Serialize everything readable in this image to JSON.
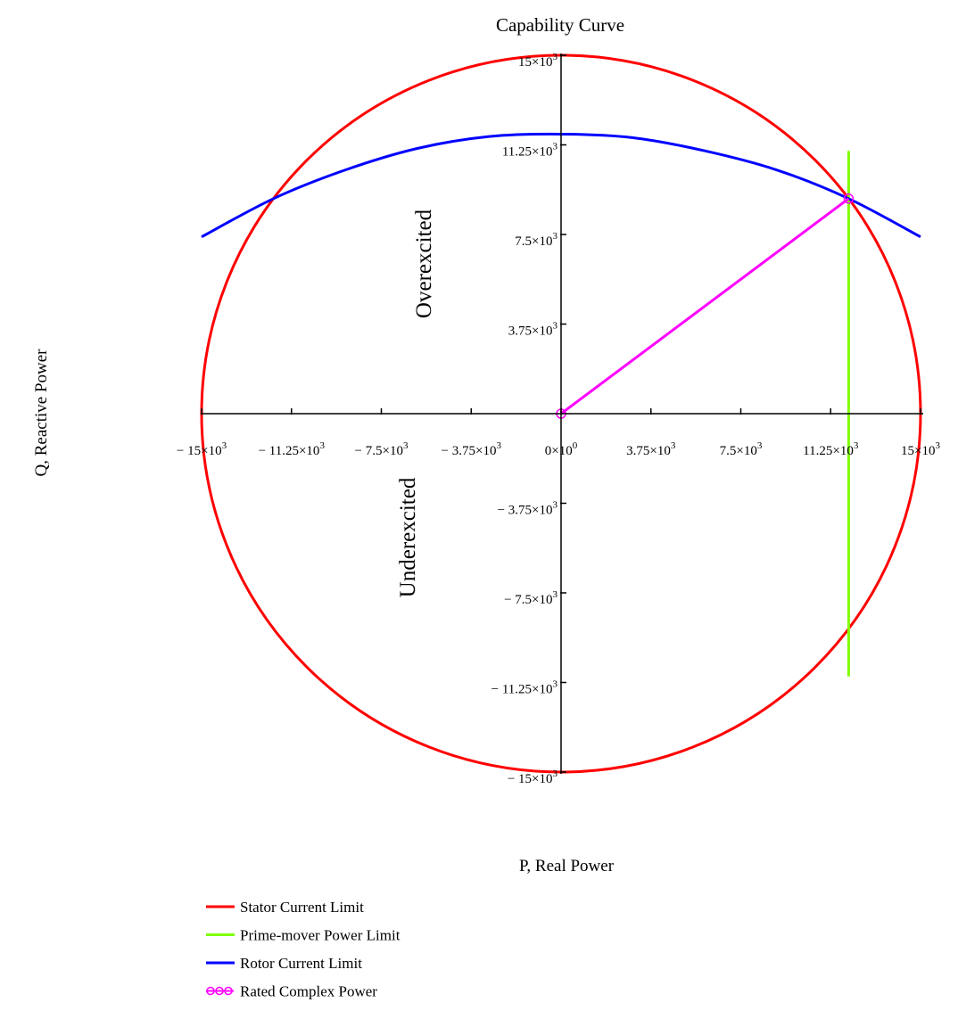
{
  "chart_data": {
    "type": "line",
    "title": "Capability Curve",
    "xlabel": "P, Real Power",
    "ylabel": "Q, Reactive Power",
    "xlim": [
      -15000,
      15000
    ],
    "ylim": [
      -15000,
      15000
    ],
    "x_ticks": [
      {
        "value": -15000,
        "label": "− 15×10³"
      },
      {
        "value": -11250,
        "label": "− 11.25×10³"
      },
      {
        "value": -7500,
        "label": "− 7.5×10³"
      },
      {
        "value": -3750,
        "label": "− 3.75×10³"
      },
      {
        "value": 0,
        "label": "0×10⁰"
      },
      {
        "value": 3750,
        "label": "3.75×10³"
      },
      {
        "value": 7500,
        "label": "7.5×10³"
      },
      {
        "value": 11250,
        "label": "11.25×10³"
      },
      {
        "value": 15000,
        "label": "15×10³"
      }
    ],
    "y_ticks": [
      {
        "value": 15000,
        "label": "15×10³"
      },
      {
        "value": 11250,
        "label": "11.25×10³"
      },
      {
        "value": 7500,
        "label": "7.5×10³"
      },
      {
        "value": 3750,
        "label": "3.75×10³"
      },
      {
        "value": -3750,
        "label": "− 3.75×10³"
      },
      {
        "value": -7500,
        "label": "− 7.5×10³"
      },
      {
        "value": -11250,
        "label": "− 11.25×10³"
      },
      {
        "value": -15000,
        "label": "− 15×10³"
      }
    ],
    "region_labels": {
      "upper": "Overexcited",
      "lower": "Underexcited"
    },
    "series": [
      {
        "name": "Stator Current Limit",
        "color": "#ff0000",
        "kind": "circle",
        "center": [
          0,
          0
        ],
        "radius": 15000
      },
      {
        "name": "Prime-mover Power Limit",
        "color": "#80ff00",
        "kind": "vertical",
        "x": 12000,
        "y_range": [
          -11000,
          11000
        ]
      },
      {
        "name": "Rotor Current Limit",
        "color": "#0000ff",
        "kind": "arc",
        "x_range": [
          -15000,
          15000
        ],
        "points": [
          [
            -15000,
            7400
          ],
          [
            -12000,
            9000
          ],
          [
            -9000,
            10200
          ],
          [
            -6000,
            11100
          ],
          [
            -3000,
            11600
          ],
          [
            0,
            11700
          ],
          [
            3000,
            11550
          ],
          [
            6000,
            11000
          ],
          [
            9000,
            10200
          ],
          [
            12000,
            9000
          ],
          [
            15000,
            7400
          ]
        ]
      },
      {
        "name": "Rated Complex Power",
        "color": "#ff00ff",
        "kind": "segment",
        "points": [
          [
            0,
            0
          ],
          [
            12000,
            9000
          ]
        ]
      }
    ],
    "legend_position": "bottom-left",
    "grid": false
  }
}
